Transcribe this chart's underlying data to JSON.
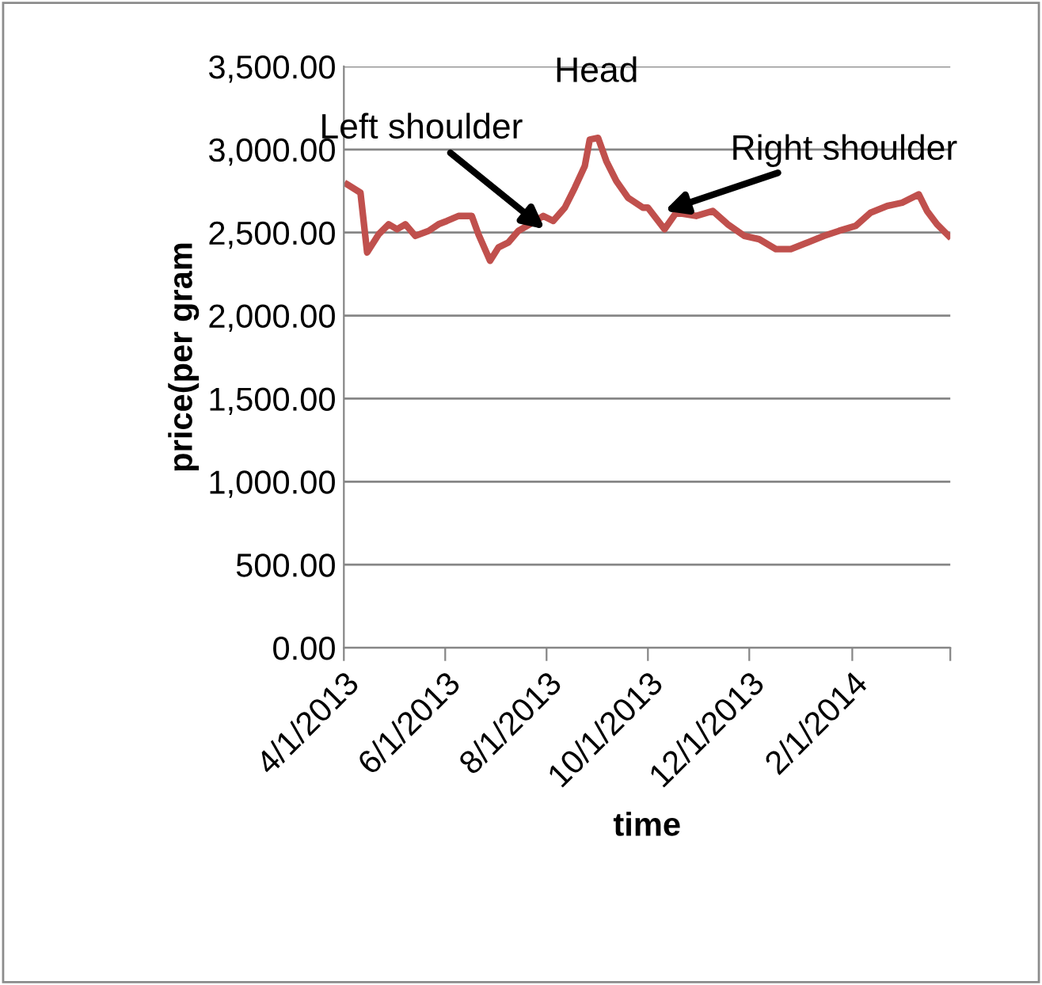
{
  "chart_data": {
    "type": "line",
    "xlabel": "time",
    "ylabel": "price(per gram",
    "x": [
      "2013-04-03",
      "2013-04-11",
      "2013-04-15",
      "2013-04-22",
      "2013-04-28",
      "2013-05-03",
      "2013-05-08",
      "2013-05-14",
      "2013-05-22",
      "2013-05-28",
      "2013-06-02",
      "2013-06-09",
      "2013-06-17",
      "2013-06-21",
      "2013-06-28",
      "2013-07-03",
      "2013-07-09",
      "2013-07-15",
      "2013-07-22",
      "2013-07-30",
      "2013-08-05",
      "2013-08-12",
      "2013-08-18",
      "2013-08-24",
      "2013-08-27",
      "2013-09-01",
      "2013-09-06",
      "2013-09-12",
      "2013-09-19",
      "2013-09-28",
      "2013-10-01",
      "2013-10-11",
      "2013-10-18",
      "2013-10-30",
      "2013-11-09",
      "2013-11-18",
      "2013-11-28",
      "2013-12-07",
      "2013-12-17",
      "2013-12-26",
      "2014-01-05",
      "2014-01-15",
      "2014-01-24",
      "2014-02-03",
      "2014-02-12",
      "2014-02-22",
      "2014-03-03",
      "2014-03-13",
      "2014-03-18",
      "2014-03-24",
      "2014-03-31"
    ],
    "series": [
      {
        "color": "#c0504d",
        "values": [
          2790,
          2740,
          2380,
          2490,
          2550,
          2520,
          2550,
          2480,
          2510,
          2550,
          2570,
          2600,
          2600,
          2490,
          2330,
          2410,
          2440,
          2510,
          2550,
          2600,
          2570,
          2650,
          2770,
          2900,
          3060,
          3070,
          2930,
          2810,
          2710,
          2650,
          2650,
          2520,
          2620,
          2600,
          2630,
          2550,
          2480,
          2460,
          2400,
          2400,
          2440,
          2480,
          2510,
          2540,
          2620,
          2660,
          2680,
          2730,
          2630,
          2550,
          2480
        ]
      }
    ],
    "xlim": [
      "2013-04-01",
      "2014-04-01"
    ],
    "xticks": [
      {
        "value": "2013-04-01",
        "label": "4/1/2013"
      },
      {
        "value": "2013-06-01",
        "label": "6/1/2013"
      },
      {
        "value": "2013-08-01",
        "label": "8/1/2013"
      },
      {
        "value": "2013-10-01",
        "label": "10/1/2013"
      },
      {
        "value": "2013-12-01",
        "label": "12/1/2013"
      },
      {
        "value": "2014-02-01",
        "label": "2/1/2014"
      },
      {
        "value": "2014-04-01",
        "label": null
      }
    ],
    "ylim": [
      0,
      3500
    ],
    "yticks": [
      {
        "value": 0,
        "label": "0.00"
      },
      {
        "value": 500,
        "label": "500.00"
      },
      {
        "value": 1000,
        "label": "1,000.00"
      },
      {
        "value": 1500,
        "label": "1,500.00"
      },
      {
        "value": 2000,
        "label": "2,000.00"
      },
      {
        "value": 2500,
        "label": "2,500.00"
      },
      {
        "value": 3000,
        "label": "3,000.00"
      },
      {
        "value": 3500,
        "label": "3,500.00"
      }
    ],
    "grid": "y",
    "marker": "none",
    "line_style": "solid",
    "annotations": [
      {
        "text": "Left shoulder",
        "x": "2013-07-31",
        "y": 2520
      },
      {
        "text": "Head",
        "x": "2013-08-31",
        "y": 3072
      },
      {
        "text": "Right shoulder",
        "x": "2013-10-11",
        "y": 2630
      }
    ]
  }
}
